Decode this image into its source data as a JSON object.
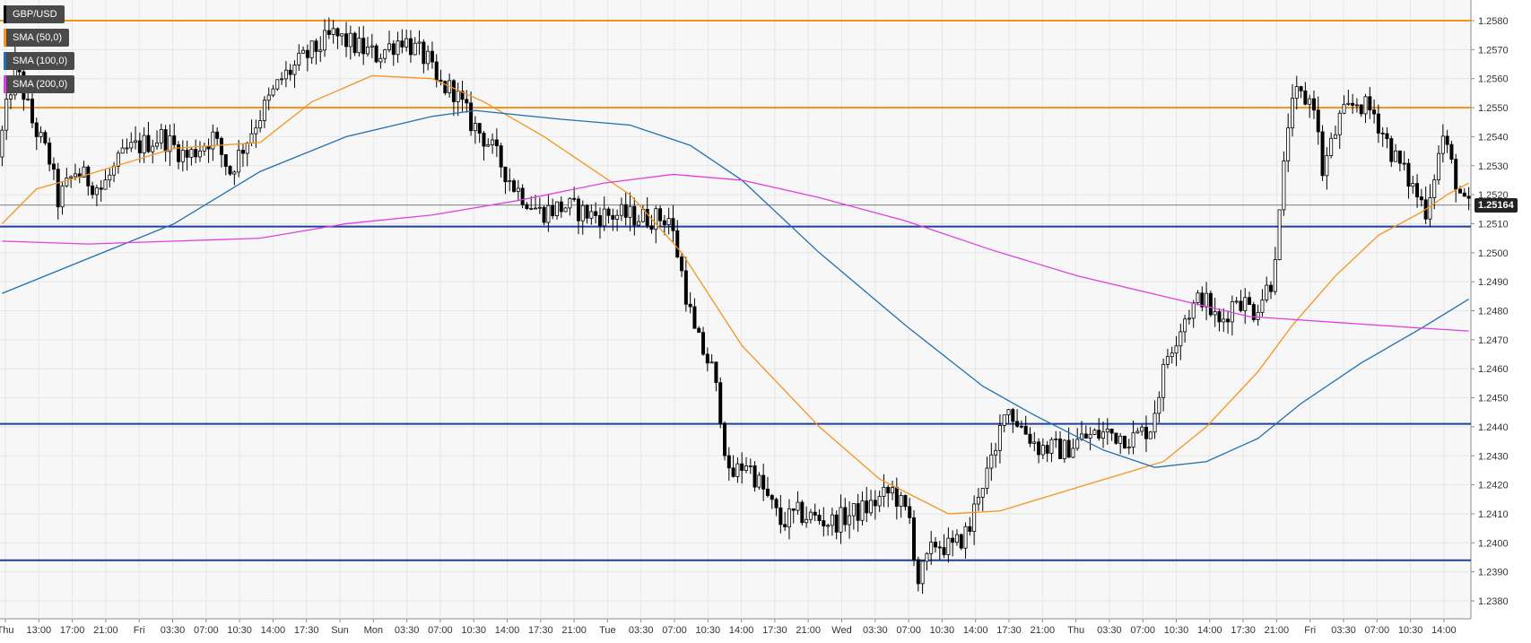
{
  "chart_data": {
    "type": "candlestick",
    "symbol": "GBP/USD",
    "legend": [
      {
        "label": "GBP/USD",
        "color": "#000000"
      },
      {
        "label": "SMA (50,0)",
        "color": "#f7931e"
      },
      {
        "label": "SMA (100,0)",
        "color": "#1f6fb4"
      },
      {
        "label": "SMA (200,0)",
        "color": "#e040e0"
      }
    ],
    "ylim": [
      1.2375,
      1.2585
    ],
    "y_ticks": [
      "1.2580",
      "1.2570",
      "1.2560",
      "1.2550",
      "1.2540",
      "1.2530",
      "1.2520",
      "1.2510",
      "1.2500",
      "1.2490",
      "1.2480",
      "1.2470",
      "1.2460",
      "1.2450",
      "1.2440",
      "1.2430",
      "1.2420",
      "1.2410",
      "1.2400",
      "1.2390",
      "1.2380"
    ],
    "x_ticks": [
      "Thu",
      "13:00",
      "17:00",
      "21:00",
      "Fri",
      "03:30",
      "07:00",
      "10:30",
      "14:00",
      "17:30",
      "Sun",
      "Mon",
      "03:30",
      "07:00",
      "10:30",
      "14:00",
      "17:30",
      "21:00",
      "Tue",
      "03:30",
      "07:00",
      "10:30",
      "14:00",
      "17:30",
      "21:00",
      "Wed",
      "03:30",
      "07:00",
      "10:30",
      "14:00",
      "17:30",
      "21:00",
      "Thu",
      "03:30",
      "07:00",
      "10:30",
      "14:00",
      "17:30",
      "21:00",
      "Fri",
      "03:30",
      "07:00",
      "10:30",
      "14:00"
    ],
    "current_price": "1.25164",
    "current_value": 1.25164,
    "horizontal_levels": [
      {
        "value": 1.258,
        "color": "#f7931e"
      },
      {
        "value": 1.255,
        "color": "#f7931e"
      },
      {
        "value": 1.2509,
        "color": "#1f3f99"
      },
      {
        "value": 1.2441,
        "color": "#1f3f99"
      },
      {
        "value": 1.2394,
        "color": "#1f3f99"
      }
    ],
    "price_path": [
      [
        0,
        1.2533
      ],
      [
        4,
        1.2565
      ],
      [
        8,
        1.2545
      ],
      [
        12,
        1.2532
      ],
      [
        14,
        1.2518
      ],
      [
        18,
        1.2528
      ],
      [
        24,
        1.2522
      ],
      [
        30,
        1.2535
      ],
      [
        38,
        1.254
      ],
      [
        44,
        1.2533
      ],
      [
        50,
        1.254
      ],
      [
        54,
        1.2528
      ],
      [
        60,
        1.2545
      ],
      [
        66,
        1.256
      ],
      [
        72,
        1.2568
      ],
      [
        78,
        1.2575
      ],
      [
        82,
        1.2572
      ],
      [
        88,
        1.2568
      ],
      [
        94,
        1.2574
      ],
      [
        100,
        1.2566
      ],
      [
        102,
        1.2558
      ],
      [
        106,
        1.2556
      ],
      [
        110,
        1.2545
      ],
      [
        114,
        1.2538
      ],
      [
        120,
        1.2523
      ],
      [
        126,
        1.2514
      ],
      [
        132,
        1.2516
      ],
      [
        138,
        1.2513
      ],
      [
        144,
        1.2513
      ],
      [
        152,
        1.2512
      ],
      [
        156,
        1.2512
      ],
      [
        158,
        1.25
      ],
      [
        162,
        1.2472
      ],
      [
        166,
        1.246
      ],
      [
        168,
        1.2445
      ],
      [
        170,
        1.2422
      ],
      [
        174,
        1.2428
      ],
      [
        178,
        1.2418
      ],
      [
        182,
        1.2407
      ],
      [
        186,
        1.241
      ],
      [
        194,
        1.2407
      ],
      [
        202,
        1.2412
      ],
      [
        208,
        1.2418
      ],
      [
        212,
        1.2408
      ],
      [
        214,
        1.2387
      ],
      [
        218,
        1.24
      ],
      [
        222,
        1.2398
      ],
      [
        226,
        1.2405
      ],
      [
        228,
        1.2418
      ],
      [
        232,
        1.243
      ],
      [
        234,
        1.2448
      ],
      [
        238,
        1.244
      ],
      [
        242,
        1.2433
      ],
      [
        248,
        1.2432
      ],
      [
        252,
        1.2436
      ],
      [
        258,
        1.2438
      ],
      [
        264,
        1.2436
      ],
      [
        268,
        1.244
      ],
      [
        272,
        1.2465
      ],
      [
        276,
        1.2478
      ],
      [
        280,
        1.2485
      ],
      [
        284,
        1.2475
      ],
      [
        288,
        1.2485
      ],
      [
        292,
        1.248
      ],
      [
        296,
        1.249
      ],
      [
        298,
        1.2512
      ],
      [
        300,
        1.2545
      ],
      [
        302,
        1.2554
      ],
      [
        306,
        1.2552
      ],
      [
        308,
        1.2528
      ],
      [
        312,
        1.2546
      ],
      [
        316,
        1.2552
      ],
      [
        320,
        1.2548
      ],
      [
        324,
        1.2535
      ],
      [
        328,
        1.2525
      ],
      [
        332,
        1.2515
      ],
      [
        336,
        1.254
      ],
      [
        339,
        1.2525
      ],
      [
        341,
        1.2516
      ]
    ],
    "sma": [
      {
        "name": "SMA (50,0)",
        "color": "#f7931e",
        "points": [
          [
            0,
            1.251
          ],
          [
            8,
            1.2522
          ],
          [
            20,
            1.2527
          ],
          [
            40,
            1.2536
          ],
          [
            60,
            1.2538
          ],
          [
            72,
            1.2552
          ],
          [
            86,
            1.2561
          ],
          [
            100,
            1.256
          ],
          [
            112,
            1.2552
          ],
          [
            126,
            1.254
          ],
          [
            146,
            1.252
          ],
          [
            158,
            1.25
          ],
          [
            172,
            1.2468
          ],
          [
            190,
            1.244
          ],
          [
            204,
            1.2422
          ],
          [
            220,
            1.241
          ],
          [
            232,
            1.2411
          ],
          [
            252,
            1.242
          ],
          [
            270,
            1.2428
          ],
          [
            280,
            1.244
          ],
          [
            292,
            1.2459
          ],
          [
            300,
            1.2475
          ],
          [
            310,
            1.2492
          ],
          [
            320,
            1.2506
          ],
          [
            330,
            1.2514
          ],
          [
            336,
            1.252
          ],
          [
            341,
            1.2524
          ]
        ]
      },
      {
        "name": "SMA (100,0)",
        "color": "#1f6fb4",
        "points": [
          [
            0,
            1.2486
          ],
          [
            20,
            1.2498
          ],
          [
            40,
            1.251
          ],
          [
            60,
            1.2528
          ],
          [
            80,
            1.254
          ],
          [
            100,
            1.2547
          ],
          [
            110,
            1.2549
          ],
          [
            130,
            1.2546
          ],
          [
            146,
            1.2544
          ],
          [
            160,
            1.2537
          ],
          [
            172,
            1.2525
          ],
          [
            190,
            1.25
          ],
          [
            210,
            1.2475
          ],
          [
            228,
            1.2454
          ],
          [
            240,
            1.2444
          ],
          [
            256,
            1.2432
          ],
          [
            268,
            1.2426
          ],
          [
            280,
            1.2428
          ],
          [
            292,
            1.2436
          ],
          [
            302,
            1.2448
          ],
          [
            316,
            1.2462
          ],
          [
            330,
            1.2474
          ],
          [
            341,
            1.2484
          ]
        ]
      },
      {
        "name": "SMA (200,0)",
        "color": "#e040e0",
        "points": [
          [
            0,
            1.2504
          ],
          [
            20,
            1.2503
          ],
          [
            40,
            1.2504
          ],
          [
            60,
            1.2505
          ],
          [
            80,
            1.251
          ],
          [
            100,
            1.2513
          ],
          [
            120,
            1.2518
          ],
          [
            140,
            1.2524
          ],
          [
            156,
            1.2527
          ],
          [
            172,
            1.2525
          ],
          [
            190,
            1.2519
          ],
          [
            210,
            1.2511
          ],
          [
            230,
            1.2501
          ],
          [
            250,
            1.2492
          ],
          [
            270,
            1.2485
          ],
          [
            290,
            1.2478
          ],
          [
            310,
            1.2476
          ],
          [
            330,
            1.2474
          ],
          [
            341,
            1.2473
          ]
        ]
      }
    ]
  }
}
